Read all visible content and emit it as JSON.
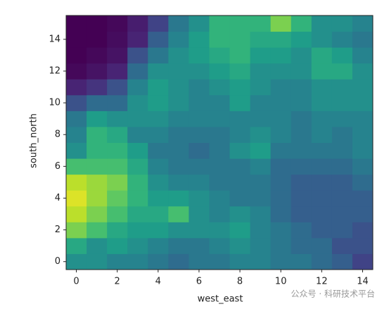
{
  "chart_data": {
    "type": "heatmap",
    "colormap": "viridis",
    "xlabel": "west_east",
    "ylabel": "south_north",
    "xlim": [
      -0.5,
      14.5
    ],
    "ylim": [
      -0.5,
      15.5
    ],
    "xticks": [
      0,
      2,
      4,
      6,
      8,
      10,
      12,
      14
    ],
    "yticks": [
      0,
      2,
      4,
      6,
      8,
      10,
      12,
      14
    ],
    "z": [
      [
        0.5,
        0.5,
        0.45,
        0.45,
        0.4,
        0.35,
        0.4,
        0.4,
        0.45,
        0.45,
        0.4,
        0.4,
        0.35,
        0.3,
        0.2
      ],
      [
        0.6,
        0.5,
        0.55,
        0.5,
        0.45,
        0.4,
        0.4,
        0.45,
        0.5,
        0.45,
        0.4,
        0.35,
        0.35,
        0.25,
        0.25
      ],
      [
        0.8,
        0.7,
        0.6,
        0.55,
        0.55,
        0.5,
        0.5,
        0.5,
        0.55,
        0.45,
        0.4,
        0.35,
        0.3,
        0.3,
        0.25
      ],
      [
        0.9,
        0.8,
        0.7,
        0.6,
        0.6,
        0.7,
        0.5,
        0.45,
        0.5,
        0.45,
        0.35,
        0.3,
        0.3,
        0.3,
        0.3
      ],
      [
        0.95,
        0.85,
        0.75,
        0.65,
        0.55,
        0.55,
        0.5,
        0.45,
        0.4,
        0.4,
        0.35,
        0.3,
        0.3,
        0.3,
        0.3
      ],
      [
        0.9,
        0.85,
        0.8,
        0.65,
        0.5,
        0.45,
        0.45,
        0.4,
        0.4,
        0.4,
        0.35,
        0.3,
        0.3,
        0.3,
        0.35
      ],
      [
        0.7,
        0.7,
        0.7,
        0.6,
        0.45,
        0.4,
        0.4,
        0.4,
        0.4,
        0.45,
        0.35,
        0.35,
        0.35,
        0.35,
        0.4
      ],
      [
        0.5,
        0.65,
        0.65,
        0.55,
        0.4,
        0.4,
        0.35,
        0.4,
        0.5,
        0.55,
        0.4,
        0.4,
        0.4,
        0.4,
        0.45
      ],
      [
        0.45,
        0.65,
        0.6,
        0.45,
        0.45,
        0.4,
        0.4,
        0.4,
        0.45,
        0.5,
        0.45,
        0.4,
        0.45,
        0.4,
        0.45
      ],
      [
        0.4,
        0.55,
        0.5,
        0.5,
        0.5,
        0.45,
        0.45,
        0.45,
        0.45,
        0.45,
        0.45,
        0.4,
        0.45,
        0.45,
        0.45
      ],
      [
        0.25,
        0.35,
        0.35,
        0.5,
        0.55,
        0.5,
        0.45,
        0.45,
        0.55,
        0.45,
        0.45,
        0.45,
        0.5,
        0.5,
        0.5
      ],
      [
        0.1,
        0.15,
        0.25,
        0.45,
        0.55,
        0.5,
        0.45,
        0.5,
        0.55,
        0.5,
        0.45,
        0.45,
        0.5,
        0.5,
        0.5
      ],
      [
        0.02,
        0.05,
        0.1,
        0.35,
        0.5,
        0.5,
        0.5,
        0.55,
        0.6,
        0.5,
        0.5,
        0.5,
        0.6,
        0.6,
        0.5
      ],
      [
        0.0,
        0.02,
        0.05,
        0.25,
        0.4,
        0.5,
        0.55,
        0.6,
        0.65,
        0.55,
        0.55,
        0.5,
        0.6,
        0.55,
        0.45
      ],
      [
        0.0,
        0.0,
        0.03,
        0.1,
        0.3,
        0.45,
        0.55,
        0.65,
        0.65,
        0.6,
        0.6,
        0.55,
        0.5,
        0.45,
        0.4
      ],
      [
        0.0,
        0.0,
        0.02,
        0.08,
        0.2,
        0.4,
        0.5,
        0.65,
        0.65,
        0.65,
        0.8,
        0.65,
        0.5,
        0.5,
        0.45
      ]
    ]
  },
  "watermark": "公众号 · 科研技术平台"
}
